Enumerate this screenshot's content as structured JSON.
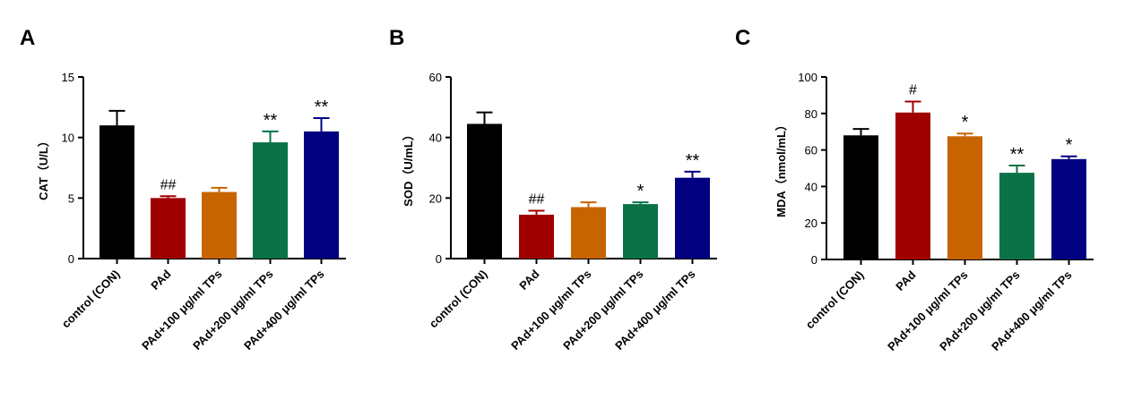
{
  "chart_data": [
    {
      "type": "bar",
      "panel": "A",
      "ylabel": "CAT（U/L）",
      "ylim": [
        0,
        15
      ],
      "yticks": [
        0,
        5,
        10,
        15
      ],
      "categories": [
        "control (CON)",
        "PAd",
        "PAd+100 μg/ml TPs",
        "PAd+200 μg/ml TPs",
        "PAd+400 μg/ml TPs"
      ],
      "values": [
        11.0,
        5.0,
        5.5,
        9.6,
        10.5
      ],
      "errors": [
        1.2,
        0.15,
        0.35,
        0.9,
        1.1
      ],
      "colors": [
        "#000000",
        "#a00000",
        "#c86400",
        "#0a7246",
        "#000080"
      ],
      "significance": [
        "",
        "##",
        "",
        "**",
        "**"
      ]
    },
    {
      "type": "bar",
      "panel": "B",
      "ylabel": "SOD（U/mL）",
      "ylim": [
        0,
        60
      ],
      "yticks": [
        0,
        20,
        40,
        60
      ],
      "categories": [
        "control (CON)",
        "PAd",
        "PAd+100 μg/ml TPs",
        "PAd+200 μg/ml TPs",
        "PAd+400 μg/ml TPs"
      ],
      "values": [
        44.5,
        14.5,
        17.0,
        18.0,
        26.7
      ],
      "errors": [
        3.8,
        1.3,
        1.6,
        0.6,
        2.0
      ],
      "colors": [
        "#000000",
        "#a00000",
        "#c86400",
        "#0a7246",
        "#000080"
      ],
      "significance": [
        "",
        "##",
        "",
        "*",
        "**"
      ]
    },
    {
      "type": "bar",
      "panel": "C",
      "ylabel": "MDA（nmol/mL）",
      "ylim": [
        0,
        100
      ],
      "yticks": [
        0,
        20,
        40,
        60,
        80,
        100
      ],
      "categories": [
        "control (CON)",
        "PAd",
        "PAd+100 μg/ml TPs",
        "PAd+200 μg/ml TPs",
        "PAd+400 μg/ml TPs"
      ],
      "values": [
        68.0,
        80.5,
        67.5,
        47.5,
        55.0
      ],
      "errors": [
        3.5,
        6.0,
        1.5,
        4.0,
        1.5
      ],
      "colors": [
        "#000000",
        "#a00000",
        "#c86400",
        "#0a7246",
        "#000080"
      ],
      "significance": [
        "",
        "#",
        "*",
        "**",
        "*"
      ]
    }
  ]
}
